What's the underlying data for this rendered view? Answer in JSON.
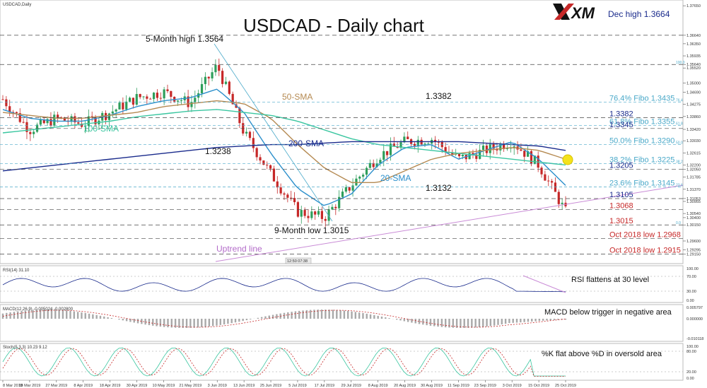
{
  "symbol_label": "USDCAD,Daily",
  "title": "USDCAD - Daily chart",
  "brand": "XM",
  "annotations": {
    "dec_high": "Dec high 1.3664",
    "five_month_high": "5-Month high 1.3564",
    "nine_month_low": "9-Month low 1.3015",
    "level_1_3382": "1.3382",
    "level_1_3238": "1.3238",
    "level_1_3132": "1.3132",
    "sma50": "50-SMA",
    "sma100": "100-SMA",
    "sma200": "200-SMA",
    "sma20": "20-SMA",
    "uptrend": "Uptrend line",
    "time_box": "12:50 07:38"
  },
  "right_levels": [
    {
      "text": "76.4% Fibo 1.3435",
      "price": 1.3435,
      "color": "#4aa9c9"
    },
    {
      "text": "1.3382",
      "price": 1.3382,
      "color": "#1a2b8c"
    },
    {
      "text": "61.8% Fibo 1.3355",
      "price": 1.3355,
      "color": "#4aa9c9"
    },
    {
      "text": "1.3345",
      "price": 1.3345,
      "color": "#1a2b8c"
    },
    {
      "text": "50.0% Fibo 1.3290",
      "price": 1.329,
      "color": "#4aa9c9"
    },
    {
      "text": "38.2% Fibo 1.3225",
      "price": 1.3225,
      "color": "#4aa9c9"
    },
    {
      "text": "1.3205",
      "price": 1.3205,
      "color": "#1a2b8c"
    },
    {
      "text": "23.6% Fibo 1.3145",
      "price": 1.3145,
      "color": "#4aa9c9"
    },
    {
      "text": "1.3105",
      "price": 1.3105,
      "color": "#1a2b8c"
    },
    {
      "text": "1.3068",
      "price": 1.3068,
      "color": "#c62828"
    },
    {
      "text": "1.3015",
      "price": 1.3015,
      "color": "#c62828"
    },
    {
      "text": "Oct 2018 low 1.2968",
      "price": 1.2968,
      "color": "#c62828"
    },
    {
      "text": "Oct 2018 low 1.2915",
      "price": 1.2915,
      "color": "#c62828"
    }
  ],
  "fib_tags": [
    "100.0",
    "76.4",
    "61.8",
    "50.0",
    "38.2",
    "23.6",
    "0.0"
  ],
  "price_axis_ticks": [
    "1.37650",
    "1.36640",
    "1.36350",
    "1.35935",
    "1.35640",
    "1.35520",
    "1.35000",
    "1.34690",
    "1.34275",
    "1.33860",
    "1.33420",
    "1.33030",
    "1.32615",
    "1.32200",
    "1.32050",
    "1.31785",
    "1.31370",
    "1.31053",
    "1.30955",
    "1.30540",
    "1.30400",
    "1.30150",
    "1.29600",
    "1.29295",
    "1.29150"
  ],
  "indicators": {
    "rsi": {
      "header": "RSI(14) 31.10",
      "comment": "RSI flattens at 30 level",
      "ticks": [
        "100.00",
        "70.00",
        "30.00",
        "0.00"
      ]
    },
    "macd": {
      "header": "MACD(12,26,9) -0.005024 -0.002800",
      "comment": "MACD below trigger in negative area",
      "ticks": [
        "0.005797",
        "0.000000",
        "-0.010118"
      ]
    },
    "stoch": {
      "header": "Stoch(5,3,3) 10.23 9.12",
      "comment": "%K flat above %D in oversold area",
      "ticks": [
        "100.00",
        "80.00",
        "20.00",
        "0.00"
      ]
    }
  },
  "date_axis": [
    "8 Mar 2019",
    "18 Mar 2019",
    "27 Mar 2019",
    "8 Apr 2019",
    "18 Apr 2019",
    "30 Apr 2019",
    "10 May 2019",
    "21 May 2019",
    "3 Jun 2019",
    "13 Jun 2019",
    "25 Jun 2019",
    "5 Jul 2019",
    "17 Jul 2019",
    "29 Jul 2019",
    "8 Aug 2019",
    "20 Aug 2019",
    "30 Aug 2019",
    "11 Sep 2019",
    "23 Sep 2019",
    "3 Oct 2019",
    "15 Oct 2019",
    "25 Oct 2019"
  ],
  "chart_data": {
    "type": "candlestick",
    "title": "USDCAD - Daily chart",
    "ylim": [
      1.2885,
      1.3775
    ],
    "x": [
      "8 Mar 2019",
      "18 Mar 2019",
      "27 Mar 2019",
      "8 Apr 2019",
      "18 Apr 2019",
      "30 Apr 2019",
      "10 May 2019",
      "21 May 2019",
      "3 Jun 2019",
      "13 Jun 2019",
      "25 Jun 2019",
      "5 Jul 2019",
      "17 Jul 2019",
      "29 Jul 2019",
      "8 Aug 2019",
      "20 Aug 2019",
      "30 Aug 2019",
      "11 Sep 2019",
      "23 Sep 2019",
      "3 Oct 2019",
      "15 Oct 2019",
      "25 Oct 2019"
    ],
    "close": [
      1.3445,
      1.334,
      1.338,
      1.336,
      1.34,
      1.345,
      1.347,
      1.343,
      1.356,
      1.333,
      1.319,
      1.306,
      1.304,
      1.315,
      1.325,
      1.33,
      1.331,
      1.324,
      1.327,
      1.33,
      1.322,
      1.306
    ],
    "series": [
      {
        "name": "20-SMA",
        "values": [
          1.341,
          1.338,
          1.337,
          1.337,
          1.339,
          1.342,
          1.344,
          1.345,
          1.348,
          1.34,
          1.326,
          1.314,
          1.308,
          1.312,
          1.322,
          1.328,
          1.329,
          1.324,
          1.327,
          1.33,
          1.324,
          1.315
        ]
      },
      {
        "name": "50-SMA",
        "values": [
          1.34,
          1.339,
          1.338,
          1.338,
          1.339,
          1.34,
          1.342,
          1.343,
          1.344,
          1.343,
          1.338,
          1.329,
          1.321,
          1.316,
          1.316,
          1.32,
          1.324,
          1.326,
          1.327,
          1.328,
          1.327,
          1.324
        ]
      },
      {
        "name": "100-SMA",
        "values": [
          1.333,
          1.334,
          1.335,
          1.336,
          1.337,
          1.3385,
          1.3395,
          1.3405,
          1.341,
          1.34,
          1.339,
          1.337,
          1.334,
          1.331,
          1.329,
          1.328,
          1.327,
          1.326,
          1.325,
          1.324,
          1.323,
          1.322
        ]
      },
      {
        "name": "200-SMA",
        "values": [
          1.32,
          1.321,
          1.322,
          1.323,
          1.324,
          1.325,
          1.326,
          1.327,
          1.328,
          1.3285,
          1.329,
          1.329,
          1.3295,
          1.33,
          1.33,
          1.33,
          1.33,
          1.33,
          1.3295,
          1.329,
          1.3285,
          1.327
        ]
      }
    ]
  }
}
